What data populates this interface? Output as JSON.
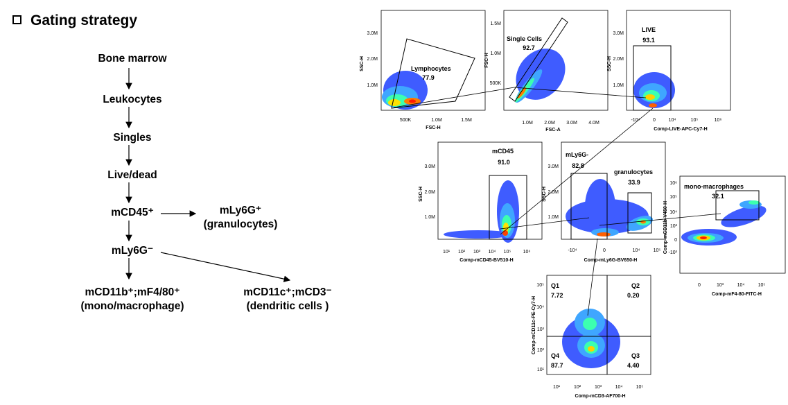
{
  "header": {
    "title": "Gating strategy"
  },
  "flow": {
    "bone_marrow": "Bone marrow",
    "leukocytes": "Leukocytes",
    "singles": "Singles",
    "live_dead": "Live/dead",
    "mcd45": "mCD45⁺",
    "ly6g_pos": "mLy6G⁺",
    "granulocytes": "(granulocytes)",
    "ly6g_neg": "mLy6G⁻",
    "mono_line1": "mCD11b⁺;mF4/80⁺",
    "mono_line2": "(mono/macrophage)",
    "dc_line1": "mCD11c⁺;mCD3⁻",
    "dc_line2": "(dendritic cells )"
  },
  "plots": {
    "p1": {
      "xlabel": "FSC-H",
      "ylabel": "SSC-H",
      "xticks": [
        "500K",
        "1.0M",
        "1.5M"
      ],
      "yticks": [
        "3.0M",
        "2.0M",
        "1.0M"
      ],
      "gate": "Lymphocytes",
      "value": "77.9"
    },
    "p2": {
      "xlabel": "FSC-A",
      "ylabel": "FSC-H",
      "xticks": [
        "1.0M",
        "2.0M",
        "3.0M",
        "4.0M"
      ],
      "yticks": [
        "1.5M",
        "1.0M",
        "500K"
      ],
      "gate": "Single Cells",
      "value": "92.7"
    },
    "p3": {
      "xlabel": "Comp-LIVE-APC-Cy7-H",
      "ylabel": "SSC-H",
      "xticks": [
        "-10⁴",
        "0",
        "10⁴",
        "10⁵",
        "10⁶"
      ],
      "yticks": [
        "3.0M",
        "2.0M",
        "1.0M"
      ],
      "gate": "LIVE",
      "value": "93.1"
    },
    "p4": {
      "xlabel": "Comp-mCD45-BV510-H",
      "ylabel": "SSC-H",
      "xticks": [
        "10¹",
        "10²",
        "10³",
        "10⁴",
        "10⁵",
        "10⁶"
      ],
      "yticks": [
        "3.0M",
        "2.0M",
        "1.0M"
      ],
      "gate": "mCD45",
      "value": "91.0"
    },
    "p5": {
      "xlabel": "Comp-mLy6G-BV650-H",
      "ylabel": "SSC-H",
      "xticks": [
        "-10⁴",
        "0",
        "10⁴",
        "10⁵"
      ],
      "yticks": [
        "3.0M",
        "2.0M",
        "1.0M"
      ],
      "gate": "mLy6G-",
      "value": "82.8",
      "gate2": "granulocytes",
      "value2": "33.9"
    },
    "p6": {
      "xlabel": "Comp-mF4-80-FITC-H",
      "ylabel": "Comp-mCD11b-V450-H",
      "xticks": [
        "0",
        "10³",
        "10⁴",
        "10⁵"
      ],
      "yticks": [
        "10⁶",
        "10⁵",
        "10⁴",
        "10³",
        "0",
        "-10³"
      ],
      "gate": "mono-macrophages",
      "value": "32.1"
    },
    "p7": {
      "xlabel": "Comp-mCD3-AF700-H",
      "ylabel": "Comp-mCD11c-PE-Cy7-H",
      "xticks": [
        "10¹",
        "10²",
        "10³",
        "10⁴",
        "10⁵"
      ],
      "yticks": [
        "10⁵",
        "10⁴",
        "10³",
        "10²",
        "10¹"
      ],
      "q1": "Q1",
      "q1v": "7.72",
      "q2": "Q2",
      "q2v": "0.20",
      "q3": "Q3",
      "q3v": "4.40",
      "q4": "Q4",
      "q4v": "87.7"
    }
  },
  "colors": {
    "density": [
      "#0000ff",
      "#00a0ff",
      "#00ff80",
      "#ffff00",
      "#ff8000",
      "#ff0000"
    ]
  }
}
